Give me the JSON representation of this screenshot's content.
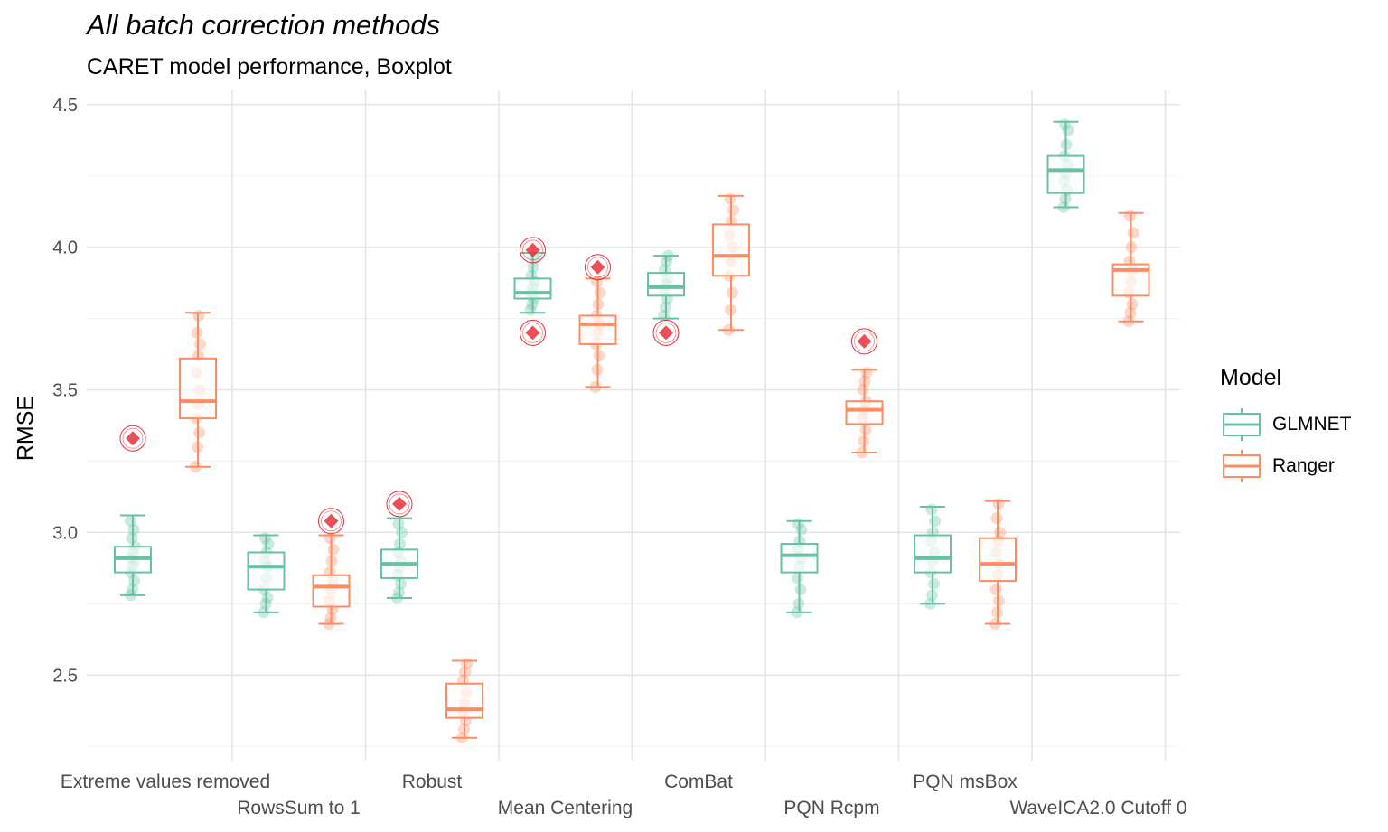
{
  "chart_data": {
    "type": "box",
    "title": "All batch correction methods",
    "subtitle": "CARET model performance, Boxplot",
    "ylabel": "RMSE",
    "xlabel": "",
    "ylim": [
      2.2,
      4.55
    ],
    "yticks": [
      2.5,
      3.0,
      3.5,
      4.0,
      4.5
    ],
    "ytick_labels": [
      "2.5",
      "3.0",
      "3.5",
      "4.0",
      "4.5"
    ],
    "grid": true,
    "legend_title": "Model",
    "legend_position": "right",
    "categories": [
      "Extreme values removed",
      "RowsSum to 1",
      "Robust",
      "Mean Centering",
      "ComBat",
      "PQN Rcpm",
      "PQN msBox",
      "WaveICA2.0 Cutoff 0"
    ],
    "series": [
      {
        "name": "GLMNET",
        "color": "#66C2A5",
        "boxes": [
          {
            "min": 2.78,
            "q1": 2.86,
            "median": 2.91,
            "q3": 2.95,
            "max": 3.06,
            "points": [
              2.78,
              2.8,
              2.83,
              2.86,
              2.88,
              2.9,
              2.91,
              2.93,
              2.95,
              2.98,
              3.01,
              3.04
            ]
          },
          {
            "min": 2.72,
            "q1": 2.8,
            "median": 2.88,
            "q3": 2.93,
            "max": 2.99,
            "points": [
              2.72,
              2.75,
              2.77,
              2.8,
              2.84,
              2.88,
              2.9,
              2.93,
              2.96,
              2.98
            ]
          },
          {
            "min": 2.77,
            "q1": 2.84,
            "median": 2.89,
            "q3": 2.94,
            "max": 3.05,
            "points": [
              2.77,
              2.79,
              2.82,
              2.85,
              2.88,
              2.9,
              2.93,
              2.96,
              3.0,
              3.03
            ]
          },
          {
            "min": 3.77,
            "q1": 3.82,
            "median": 3.84,
            "q3": 3.89,
            "max": 3.98,
            "points": [
              3.78,
              3.8,
              3.82,
              3.84,
              3.86,
              3.88,
              3.9,
              3.93,
              3.96
            ]
          },
          {
            "min": 3.75,
            "q1": 3.83,
            "median": 3.86,
            "q3": 3.91,
            "max": 3.97,
            "points": [
              3.76,
              3.79,
              3.82,
              3.85,
              3.87,
              3.89,
              3.92,
              3.95,
              3.97
            ]
          },
          {
            "min": 2.72,
            "q1": 2.86,
            "median": 2.92,
            "q3": 2.96,
            "max": 3.04,
            "points": [
              2.72,
              2.75,
              2.8,
              2.84,
              2.88,
              2.91,
              2.94,
              2.97,
              3.01,
              3.03
            ]
          },
          {
            "min": 2.75,
            "q1": 2.86,
            "median": 2.91,
            "q3": 2.99,
            "max": 3.09,
            "points": [
              2.75,
              2.78,
              2.82,
              2.86,
              2.9,
              2.93,
              2.97,
              3.0,
              3.04,
              3.08
            ]
          },
          {
            "min": 4.14,
            "q1": 4.19,
            "median": 4.27,
            "q3": 4.32,
            "max": 4.44,
            "points": [
              4.14,
              4.17,
              4.2,
              4.23,
              4.26,
              4.29,
              4.32,
              4.36,
              4.41,
              4.43
            ]
          }
        ]
      },
      {
        "name": "Ranger",
        "color": "#FC8D62",
        "boxes": [
          {
            "min": 3.23,
            "q1": 3.4,
            "median": 3.46,
            "q3": 3.61,
            "max": 3.77,
            "points": [
              3.23,
              3.3,
              3.35,
              3.4,
              3.45,
              3.5,
              3.56,
              3.62,
              3.66,
              3.7,
              3.76
            ]
          },
          {
            "min": 2.68,
            "q1": 2.74,
            "median": 2.81,
            "q3": 2.85,
            "max": 2.99,
            "points": [
              2.68,
              2.7,
              2.73,
              2.76,
              2.8,
              2.83,
              2.86,
              2.9,
              2.94,
              2.98
            ]
          },
          {
            "min": 2.28,
            "q1": 2.35,
            "median": 2.38,
            "q3": 2.47,
            "max": 2.55,
            "points": [
              2.28,
              2.31,
              2.34,
              2.37,
              2.4,
              2.44,
              2.48,
              2.51,
              2.54
            ]
          },
          {
            "min": 3.51,
            "q1": 3.66,
            "median": 3.73,
            "q3": 3.76,
            "max": 3.89,
            "points": [
              3.51,
              3.57,
              3.62,
              3.66,
              3.7,
              3.73,
              3.76,
              3.8,
              3.84,
              3.88
            ]
          },
          {
            "min": 3.71,
            "q1": 3.9,
            "median": 3.97,
            "q3": 4.08,
            "max": 4.18,
            "points": [
              3.71,
              3.78,
              3.84,
              3.9,
              3.95,
              4.0,
              4.04,
              4.09,
              4.13,
              4.17
            ]
          },
          {
            "min": 3.28,
            "q1": 3.38,
            "median": 3.43,
            "q3": 3.46,
            "max": 3.57,
            "points": [
              3.28,
              3.32,
              3.36,
              3.4,
              3.43,
              3.46,
              3.5,
              3.53,
              3.56
            ]
          },
          {
            "min": 2.68,
            "q1": 2.83,
            "median": 2.89,
            "q3": 2.98,
            "max": 3.11,
            "points": [
              2.68,
              2.72,
              2.76,
              2.8,
              2.85,
              2.89,
              2.93,
              2.97,
              3.0,
              3.05,
              3.1
            ]
          },
          {
            "min": 3.74,
            "q1": 3.83,
            "median": 3.92,
            "q3": 3.94,
            "max": 4.12,
            "points": [
              3.74,
              3.77,
              3.8,
              3.84,
              3.88,
              3.92,
              3.95,
              4.0,
              4.05,
              4.11
            ]
          }
        ]
      }
    ],
    "outliers": [
      {
        "category": "Extreme values removed",
        "series": "GLMNET",
        "values": [
          3.33
        ]
      },
      {
        "category": "RowsSum to 1",
        "series": "Ranger",
        "values": [
          3.04
        ]
      },
      {
        "category": "Robust",
        "series": "GLMNET",
        "values": [
          3.1
        ]
      },
      {
        "category": "Mean Centering",
        "series": "GLMNET",
        "values": [
          3.99,
          3.7
        ]
      },
      {
        "category": "Mean Centering",
        "series": "Ranger",
        "values": [
          3.93
        ]
      },
      {
        "category": "ComBat",
        "series": "GLMNET",
        "values": [
          3.7
        ]
      },
      {
        "category": "PQN Rcpm",
        "series": "Ranger",
        "values": [
          3.67
        ]
      }
    ],
    "outlier_color": "#E8303A"
  }
}
